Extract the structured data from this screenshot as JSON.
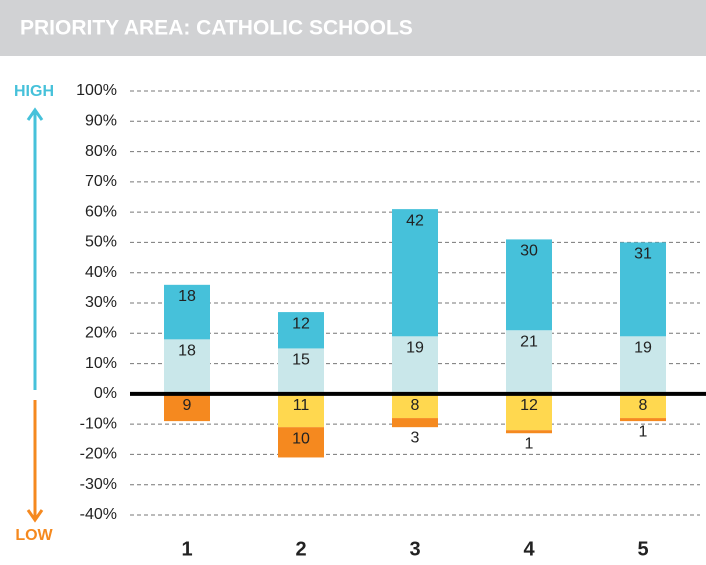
{
  "chart_data": {
    "type": "diverging_stacked_bar",
    "title": "PRIORITY AREA: CATHOLIC SCHOOLS",
    "annotations": [
      "HIGH",
      "LOW"
    ],
    "categories": [
      "1",
      "2",
      "3",
      "4",
      "5"
    ],
    "series": [
      {
        "color": "#c9e7ea",
        "values": [
          18,
          15,
          19,
          21,
          19
        ]
      },
      {
        "color": "#46c1da",
        "values": [
          18,
          12,
          42,
          30,
          31
        ]
      },
      {
        "color": "#ffd84f",
        "values": [
          null,
          -11,
          -8,
          -12,
          -8
        ],
        "value_labels": [
          null,
          "11",
          "8",
          "12",
          "8"
        ]
      },
      {
        "color": "#f5891f",
        "values": [
          -9,
          -10,
          -3,
          -1,
          -1
        ],
        "value_labels": [
          "9",
          "10",
          "3",
          "1",
          "1"
        ]
      }
    ],
    "ylim": [
      -40,
      100
    ],
    "yticks": [
      {
        "value": -40,
        "label": "-40%"
      },
      {
        "value": -30,
        "label": "-30%"
      },
      {
        "value": -20,
        "label": "-20%"
      },
      {
        "value": -10,
        "label": "-10%"
      },
      {
        "value": 0,
        "label": "0%"
      },
      {
        "value": 10,
        "label": "10%"
      },
      {
        "value": 20,
        "label": "20%"
      },
      {
        "value": 30,
        "label": "30%"
      },
      {
        "value": 40,
        "label": "40%"
      },
      {
        "value": 50,
        "label": "50%"
      },
      {
        "value": 60,
        "label": "60%"
      },
      {
        "value": 70,
        "label": "70%"
      },
      {
        "value": 80,
        "label": "80%"
      },
      {
        "value": 90,
        "label": "90%"
      },
      {
        "value": 100,
        "label": "100%"
      }
    ],
    "grid": true
  }
}
